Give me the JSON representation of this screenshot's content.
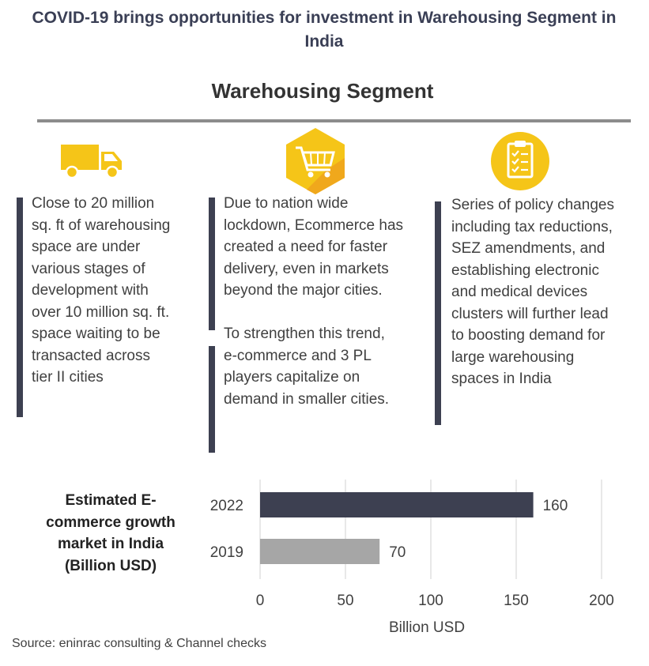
{
  "title": "COVID-19 brings opportunities for investment in Warehousing Segment in India",
  "section_title": "Warehousing Segment",
  "icons": [
    "truck-icon",
    "shopping-cart-icon",
    "clipboard-checklist-icon"
  ],
  "columns": [
    {
      "text": "Close to 20 million\nsq. ft of warehousing\nspace are under\nvarious stages of\ndevelopment with\nover 10 million sq. ft.\nspace waiting to be\ntransacted across\ntier II cities"
    },
    {
      "text": "Due to nation wide\nlockdown, Ecommerce has\ncreated a need for faster\ndelivery, even in markets\nbeyond the major cities.",
      "text2": "To strengthen this trend,\ne-commerce and 3 PL\nplayers capitalize on\ndemand in smaller cities."
    },
    {
      "text": "Series of policy changes\nincluding tax reductions,\nSEZ amendments, and\nestablishing electronic\nand medical devices\nclusters will further lead\nto boosting demand for\nlarge warehousing\nspaces in India"
    }
  ],
  "chart_label": "Estimated E-commerce growth market in India (Billion USD)",
  "chart_data": {
    "type": "bar",
    "orientation": "horizontal",
    "categories": [
      "2022",
      "2019"
    ],
    "values": [
      160,
      70
    ],
    "colors": [
      "#3d4051",
      "#a6a6a6"
    ],
    "xlabel": "Billion USD",
    "ylabel": "",
    "xlim": [
      0,
      200
    ],
    "xticks": [
      0,
      50,
      100,
      150,
      200
    ],
    "grid": true
  },
  "source": "Source: eninrac consulting & Channel checks",
  "colors": {
    "accent_yellow": "#f5c518",
    "dark_bar": "#3d4051",
    "light_bar": "#a6a6a6",
    "rule": "#8c8c8c"
  }
}
